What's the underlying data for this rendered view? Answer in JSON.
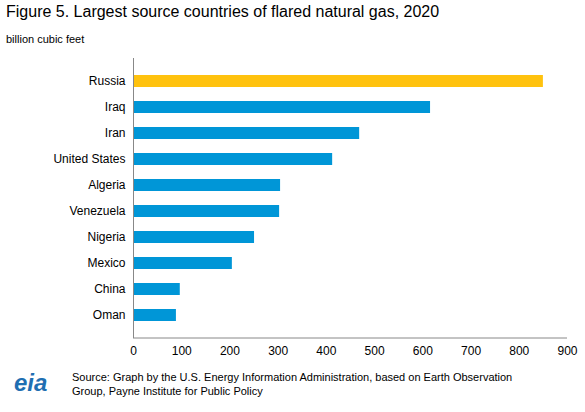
{
  "chart_data": {
    "type": "bar",
    "orientation": "horizontal",
    "title": "Figure 5. Largest source countries of flared natural gas, 2020",
    "subtitle": "billion cubic feet",
    "source": "Source: Graph by the U.S. Energy Information Administration, based on Earth Observation Group, Payne Institute for Public Policy",
    "logo": "eia",
    "categories": [
      "Russia",
      "Iraq",
      "Iran",
      "United States",
      "Algeria",
      "Venezuela",
      "Nigeria",
      "Mexico",
      "China",
      "Oman"
    ],
    "values": [
      850,
      616,
      469,
      413,
      305,
      303,
      251,
      205,
      97,
      89
    ],
    "colors": [
      "#ffc20e",
      "#0096d7",
      "#0096d7",
      "#0096d7",
      "#0096d7",
      "#0096d7",
      "#0096d7",
      "#0096d7",
      "#0096d7",
      "#0096d7"
    ],
    "xlim": [
      0,
      900
    ],
    "xticks": [
      0,
      100,
      200,
      300,
      400,
      500,
      600,
      700,
      800,
      900
    ],
    "grid": false
  }
}
